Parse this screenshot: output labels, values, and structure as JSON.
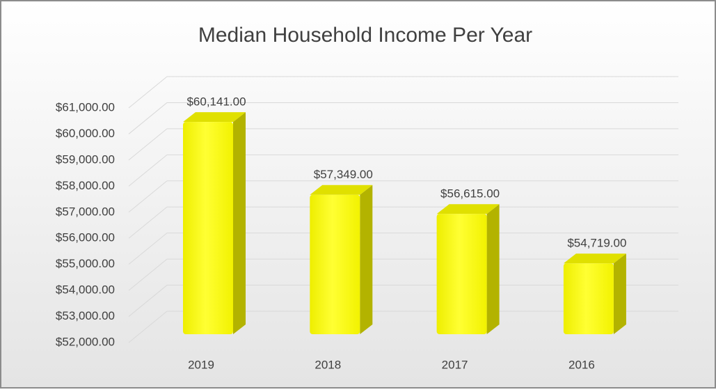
{
  "chart_data": {
    "type": "bar3d",
    "title": "Median Household Income Per Year",
    "categories": [
      "2019",
      "2018",
      "2017",
      "2016"
    ],
    "values": [
      60141,
      57349,
      56615,
      54719
    ],
    "value_labels": [
      "$60,141.00",
      "$57,349.00",
      "$56,615.00",
      "$54,719.00"
    ],
    "color": "#ffff00",
    "ylim": [
      52000,
      61000
    ],
    "yticks": [
      {
        "value": 52000,
        "label": "$52,000.00"
      },
      {
        "value": 53000,
        "label": "$53,000.00"
      },
      {
        "value": 54000,
        "label": "$54,000.00"
      },
      {
        "value": 55000,
        "label": "$55,000.00"
      },
      {
        "value": 56000,
        "label": "$56,000.00"
      },
      {
        "value": 57000,
        "label": "$57,000.00"
      },
      {
        "value": 58000,
        "label": "$58,000.00"
      },
      {
        "value": 59000,
        "label": "$59,000.00"
      },
      {
        "value": 60000,
        "label": "$60,000.00"
      },
      {
        "value": 61000,
        "label": "$61,000.00"
      }
    ],
    "grid": true
  }
}
